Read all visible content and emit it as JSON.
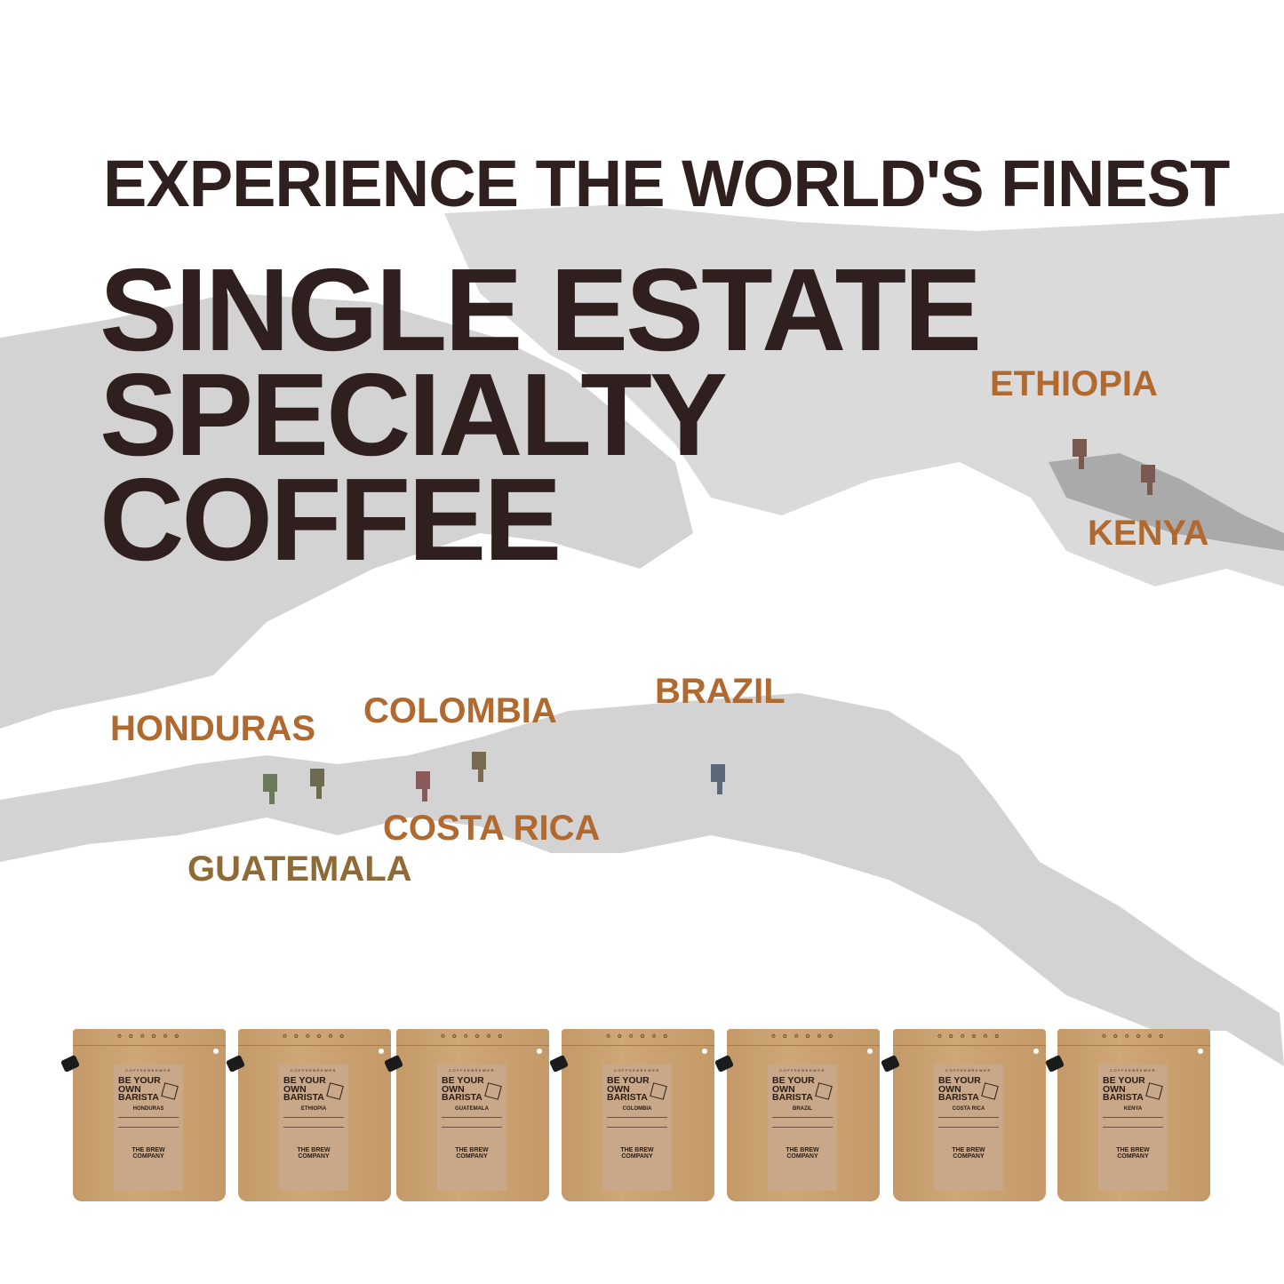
{
  "headline": {
    "line1": "EXPERIENCE THE WORLD'S FINEST",
    "line2": "SINGLE ESTATE",
    "line3": "SPECIALTY",
    "line4": "COFFEE"
  },
  "colors": {
    "headline": "#2f1f1f",
    "country_label": "#b0692e",
    "map_land": "#c9c9c9",
    "bag": "#c9a070"
  },
  "map_labels": {
    "ethiopia": "ETHIOPIA",
    "kenya": "KENYA",
    "honduras": "HONDURAS",
    "colombia": "COLOMBIA",
    "brazil": "BRAZIL",
    "costa_rica": "COSTA RICA",
    "guatemala": "GUATEMALA"
  },
  "bags": [
    {
      "brand": "COFFEEBREWER",
      "slogan": "BE YOUR OWN BARISTA",
      "country": "HONDURAS",
      "company": "THE BREW COMPANY"
    },
    {
      "brand": "COFFEEBREWER",
      "slogan": "BE YOUR OWN BARISTA",
      "country": "ETHIOPIA",
      "company": "THE BREW COMPANY"
    },
    {
      "brand": "COFFEEBREWER",
      "slogan": "BE YOUR OWN BARISTA",
      "country": "GUATEMALA",
      "company": "THE BREW COMPANY"
    },
    {
      "brand": "COFFEEBREWER",
      "slogan": "BE YOUR OWN BARISTA",
      "country": "COLOMBIA",
      "company": "THE BREW COMPANY"
    },
    {
      "brand": "COFFEEBREWER",
      "slogan": "BE YOUR OWN BARISTA",
      "country": "BRAZIL",
      "company": "THE BREW COMPANY"
    },
    {
      "brand": "COFFEEBREWER",
      "slogan": "BE YOUR OWN BARISTA",
      "country": "COSTA RICA",
      "company": "THE BREW COMPANY"
    },
    {
      "brand": "COFFEEBREWER",
      "slogan": "BE YOUR OWN BARISTA",
      "country": "KENYA",
      "company": "THE BREW COMPANY"
    }
  ]
}
